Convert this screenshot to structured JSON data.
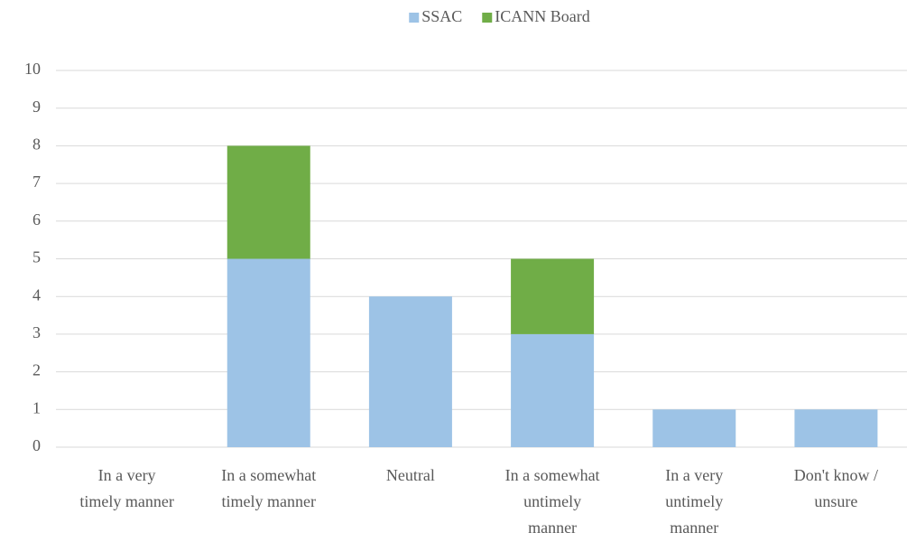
{
  "chart_data": {
    "type": "stacked_bar",
    "categories": [
      "In a very timely manner",
      "In a somewhat timely manner",
      "Neutral",
      "In a somewhat untimely manner",
      "In a very untimely manner",
      "Don't know / unsure"
    ],
    "series": [
      {
        "name": "SSAC",
        "color": "#9dc3e6",
        "values": [
          0,
          5,
          4,
          3,
          1,
          1
        ]
      },
      {
        "name": "ICANN Board",
        "color": "#70ad47",
        "values": [
          0,
          3,
          0,
          2,
          0,
          0
        ]
      }
    ],
    "ylim": [
      0,
      10
    ],
    "yticks": [
      0,
      1,
      2,
      3,
      4,
      5,
      6,
      7,
      8,
      9,
      10
    ],
    "grid": true,
    "legend": "top"
  }
}
